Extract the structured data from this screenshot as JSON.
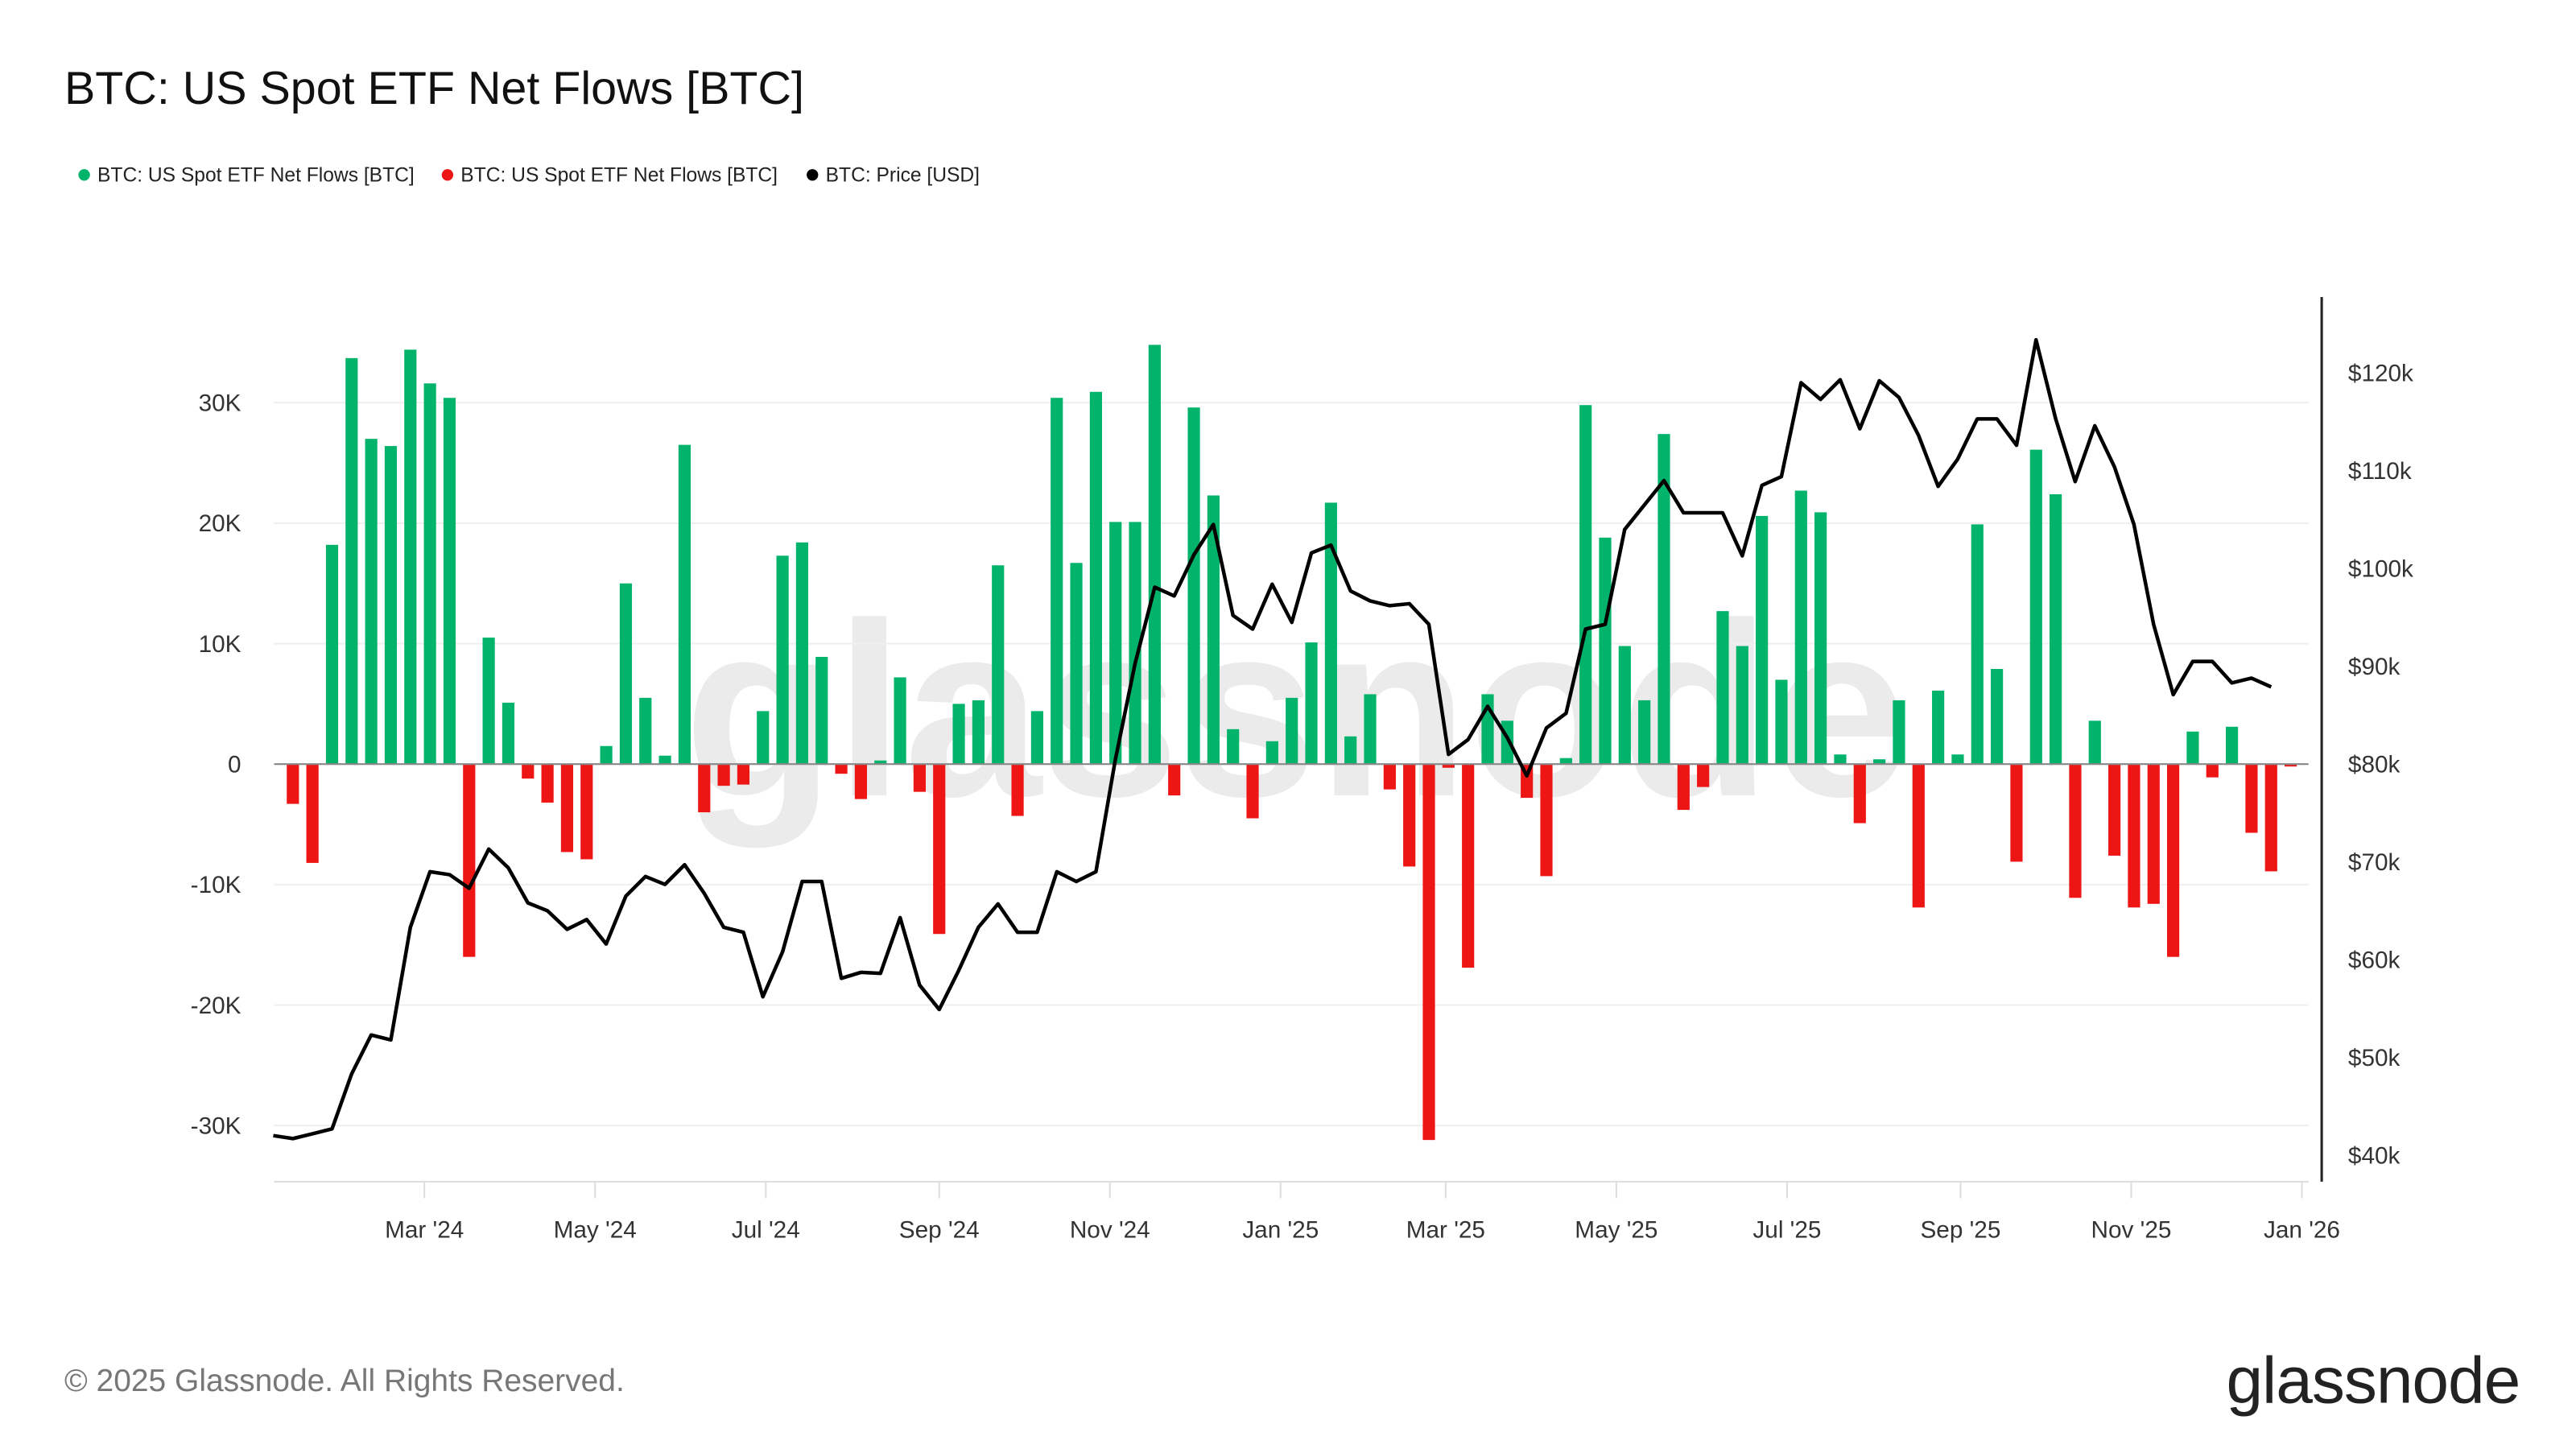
{
  "title": "BTC: US Spot ETF Net Flows [BTC]",
  "legend": [
    {
      "label": "BTC: US Spot ETF Net Flows [BTC]",
      "color": "#02b36b"
    },
    {
      "label": "BTC: US Spot ETF Net Flows [BTC]",
      "color": "#ee1515"
    },
    {
      "label": "BTC: Price [USD]",
      "color": "#000000"
    }
  ],
  "footer": {
    "copyright": "© 2025 Glassnode. All Rights Reserved.",
    "logo": "glassnode",
    "watermark": "glassnode"
  },
  "chart_data": {
    "type": "bar",
    "interval": "weekly",
    "title": "BTC: US Spot ETF Net Flows [BTC]",
    "x_ticks": [
      "Mar '24",
      "May '24",
      "Jul '24",
      "Sep '24",
      "Nov '24",
      "Jan '25",
      "Mar '25",
      "May '25",
      "Jul '25",
      "Sep '25",
      "Nov '25",
      "Jan '26"
    ],
    "y_left": {
      "ticks": [
        "30K",
        "20K",
        "10K",
        "0",
        "-10K",
        "-20K",
        "-30K"
      ],
      "range": [
        -35000,
        35000
      ]
    },
    "y_right": {
      "ticks": [
        "$120k",
        "$110k",
        "$100k",
        "$90k",
        "$80k",
        "$70k",
        "$60k",
        "$50k",
        "$40k"
      ],
      "range": [
        40000,
        125000
      ]
    },
    "grid": true,
    "legend_position": "top-left",
    "colors": {
      "inflow": "#02b36b",
      "outflow": "#ee1515",
      "price": "#000000"
    },
    "series": [
      {
        "name": "BTC: US Spot ETF Net Flows [BTC]",
        "type": "bar",
        "axis": "left",
        "values": [
          -3300,
          -8200,
          18200,
          33700,
          27000,
          26400,
          34400,
          31600,
          30400,
          -16000,
          10500,
          5100,
          -1200,
          -3200,
          -7300,
          -7900,
          1500,
          15000,
          5500,
          700,
          26500,
          -4000,
          -1800,
          -1700,
          4400,
          17300,
          18400,
          8900,
          -800,
          -2900,
          300,
          7200,
          -2300,
          -14100,
          5000,
          5300,
          16500,
          -4300,
          4400,
          30400,
          16700,
          30900,
          20100,
          20100,
          34800,
          -2600,
          29600,
          22300,
          2900,
          -4500,
          1900,
          5500,
          10100,
          21700,
          2300,
          5800,
          -2100,
          -8500,
          -31200,
          -300,
          -16900,
          5800,
          3600,
          -2800,
          -9300,
          500,
          29800,
          18800,
          9800,
          5300,
          27400,
          -3800,
          -1900,
          12700,
          9800,
          20600,
          7000,
          22700,
          20900,
          800,
          -4900,
          400,
          5300,
          -11900,
          6100,
          800,
          19900,
          7900,
          -8100,
          26100,
          22400,
          -11100,
          3600,
          -7600,
          -11900,
          -11600,
          -16000,
          2700,
          -1100,
          3100,
          -5700,
          -8900,
          -200
        ]
      },
      {
        "name": "BTC: Price [USD]",
        "type": "line",
        "axis": "right",
        "values": [
          42000,
          41700,
          42200,
          42700,
          48300,
          52300,
          51800,
          63300,
          69000,
          68700,
          67300,
          71300,
          69400,
          65800,
          65000,
          63100,
          64100,
          61600,
          66500,
          68500,
          67700,
          69700,
          66800,
          63300,
          62800,
          56200,
          60800,
          68000,
          68000,
          58100,
          58700,
          58600,
          64300,
          57400,
          54900,
          58900,
          63300,
          65700,
          62800,
          62800,
          69000,
          68000,
          69000,
          80500,
          90300,
          98100,
          97200,
          101400,
          104500,
          95200,
          93800,
          98400,
          94500,
          101600,
          102400,
          97700,
          96700,
          96200,
          96400,
          94300,
          81000,
          82500,
          85900,
          82700,
          78800,
          83700,
          85200,
          93800,
          94300,
          104000,
          106500,
          109000,
          105700,
          105700,
          105700,
          101300,
          108500,
          109400,
          119000,
          117300,
          119300,
          114300,
          119200,
          117500,
          113600,
          108400,
          111200,
          115300,
          115300,
          112600,
          123400,
          115300,
          108900,
          114600,
          110400,
          104500,
          94300,
          87100,
          90500,
          90500,
          88300,
          88800,
          87900
        ]
      }
    ]
  }
}
